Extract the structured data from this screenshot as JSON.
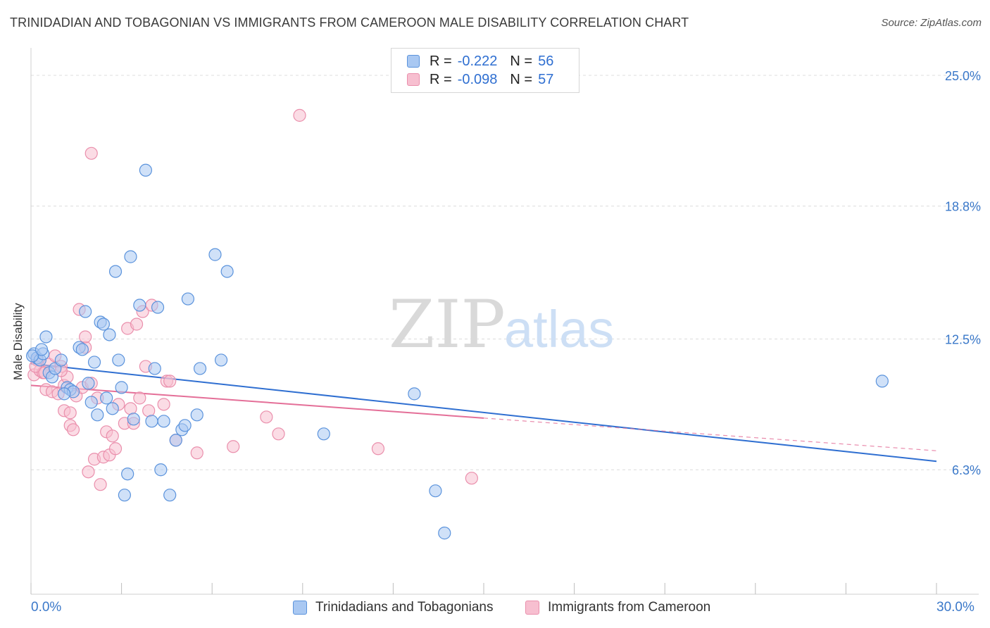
{
  "title": "TRINIDADIAN AND TOBAGONIAN VS IMMIGRANTS FROM CAMEROON MALE DISABILITY CORRELATION CHART",
  "source": "Source: ZipAtlas.com",
  "watermark": {
    "zip": "ZIP",
    "atlas": "atlas"
  },
  "colors": {
    "blue_fill": "#a9c8f2",
    "blue_stroke": "#5b93dc",
    "blue_line": "#2f6fd1",
    "pink_fill": "#f7bfd0",
    "pink_stroke": "#ea8fac",
    "pink_line": "#e46f98",
    "grid": "#dcdcdc",
    "tick_text": "#3a78c9"
  },
  "legend": {
    "rows": [
      {
        "r_label": "R =",
        "r_value": "-0.222",
        "n_label": "N =",
        "n_value": "56"
      },
      {
        "r_label": "R =",
        "r_value": "-0.098",
        "n_label": "N =",
        "n_value": "57"
      }
    ]
  },
  "chart_data": {
    "type": "scatter",
    "title": "TRINIDADIAN AND TOBAGONIAN VS IMMIGRANTS FROM CAMEROON MALE DISABILITY CORRELATION CHART",
    "xlabel": "",
    "ylabel": "Male Disability",
    "xlim": [
      0,
      30
    ],
    "ylim": [
      0.4,
      26.3
    ],
    "x_tick_labels": [
      "0.0%",
      "30.0%"
    ],
    "y_ticks": [
      6.3,
      12.5,
      18.8,
      25.0
    ],
    "y_tick_labels": [
      "6.3%",
      "12.5%",
      "18.8%",
      "25.0%"
    ],
    "grid": true,
    "legend_position": "bottom",
    "series": [
      {
        "name": "Trinidadians and Tobagonians",
        "color": "blue",
        "r": -0.222,
        "n": 56,
        "trend": {
          "x": [
            0,
            30
          ],
          "y": [
            11.33,
            6.7
          ]
        },
        "points": [
          [
            0.1,
            11.8
          ],
          [
            0.2,
            11.6
          ],
          [
            0.3,
            11.5
          ],
          [
            0.4,
            11.8
          ],
          [
            0.5,
            12.6
          ],
          [
            0.6,
            10.9
          ],
          [
            0.7,
            10.7
          ],
          [
            0.8,
            11.1
          ],
          [
            1.0,
            11.5
          ],
          [
            1.2,
            10.2
          ],
          [
            1.3,
            10.1
          ],
          [
            1.4,
            10.0
          ],
          [
            1.6,
            12.1
          ],
          [
            1.7,
            12.0
          ],
          [
            1.8,
            13.8
          ],
          [
            1.9,
            10.4
          ],
          [
            2.0,
            9.5
          ],
          [
            2.1,
            11.4
          ],
          [
            2.2,
            8.9
          ],
          [
            2.3,
            13.3
          ],
          [
            2.4,
            13.2
          ],
          [
            2.5,
            9.7
          ],
          [
            2.6,
            12.7
          ],
          [
            2.8,
            15.7
          ],
          [
            2.9,
            11.5
          ],
          [
            3.0,
            10.2
          ],
          [
            3.1,
            5.1
          ],
          [
            3.2,
            6.1
          ],
          [
            3.3,
            16.4
          ],
          [
            3.4,
            8.7
          ],
          [
            3.6,
            14.1
          ],
          [
            3.8,
            20.5
          ],
          [
            4.0,
            8.6
          ],
          [
            4.1,
            11.1
          ],
          [
            4.2,
            14.0
          ],
          [
            4.3,
            6.3
          ],
          [
            4.4,
            8.6
          ],
          [
            4.6,
            5.1
          ],
          [
            4.8,
            7.7
          ],
          [
            5.0,
            8.2
          ],
          [
            5.1,
            8.4
          ],
          [
            5.2,
            14.4
          ],
          [
            5.5,
            8.9
          ],
          [
            5.6,
            11.1
          ],
          [
            6.1,
            16.5
          ],
          [
            6.3,
            11.5
          ],
          [
            6.5,
            15.7
          ],
          [
            9.7,
            8.0
          ],
          [
            12.7,
            9.9
          ],
          [
            13.4,
            5.3
          ],
          [
            13.7,
            3.3
          ],
          [
            28.2,
            10.5
          ],
          [
            0.05,
            11.7
          ],
          [
            0.35,
            12.0
          ],
          [
            1.1,
            9.9
          ],
          [
            2.7,
            9.2
          ]
        ]
      },
      {
        "name": "Immigrants from Cameroon",
        "color": "pink",
        "r": -0.098,
        "n": 57,
        "trend": {
          "x": [
            0,
            15
          ],
          "y": [
            10.3,
            8.75
          ]
        },
        "trend_dashed": {
          "x": [
            15,
            30
          ],
          "y": [
            8.75,
            7.2
          ]
        },
        "points": [
          [
            0.1,
            10.8
          ],
          [
            0.2,
            11.5
          ],
          [
            0.3,
            11.0
          ],
          [
            0.4,
            10.9
          ],
          [
            0.5,
            10.1
          ],
          [
            0.6,
            11.3
          ],
          [
            0.7,
            10.0
          ],
          [
            0.8,
            11.7
          ],
          [
            0.9,
            9.9
          ],
          [
            1.0,
            11.2
          ],
          [
            1.1,
            10.3
          ],
          [
            1.1,
            9.1
          ],
          [
            1.2,
            10.7
          ],
          [
            1.3,
            8.4
          ],
          [
            1.3,
            9.0
          ],
          [
            1.4,
            8.2
          ],
          [
            1.5,
            9.8
          ],
          [
            1.6,
            13.9
          ],
          [
            1.7,
            10.2
          ],
          [
            1.8,
            12.1
          ],
          [
            1.8,
            12.6
          ],
          [
            1.9,
            6.2
          ],
          [
            2.0,
            10.4
          ],
          [
            2.0,
            21.3
          ],
          [
            2.1,
            6.8
          ],
          [
            2.2,
            9.7
          ],
          [
            2.3,
            5.6
          ],
          [
            2.4,
            6.9
          ],
          [
            2.5,
            8.1
          ],
          [
            2.6,
            7.0
          ],
          [
            2.7,
            7.9
          ],
          [
            2.8,
            7.3
          ],
          [
            2.9,
            9.4
          ],
          [
            3.1,
            8.5
          ],
          [
            3.2,
            13.0
          ],
          [
            3.3,
            9.2
          ],
          [
            3.4,
            8.5
          ],
          [
            3.5,
            13.2
          ],
          [
            3.6,
            9.7
          ],
          [
            3.7,
            13.8
          ],
          [
            3.8,
            11.2
          ],
          [
            3.9,
            9.1
          ],
          [
            4.0,
            14.1
          ],
          [
            4.4,
            9.4
          ],
          [
            4.5,
            10.5
          ],
          [
            4.6,
            10.5
          ],
          [
            4.8,
            7.7
          ],
          [
            5.5,
            7.1
          ],
          [
            6.7,
            7.4
          ],
          [
            7.8,
            8.8
          ],
          [
            8.2,
            8.0
          ],
          [
            8.9,
            23.1
          ],
          [
            11.5,
            7.3
          ],
          [
            14.6,
            5.9
          ],
          [
            0.15,
            11.2
          ],
          [
            0.45,
            10.9
          ],
          [
            1.0,
            11.0
          ]
        ]
      }
    ]
  }
}
